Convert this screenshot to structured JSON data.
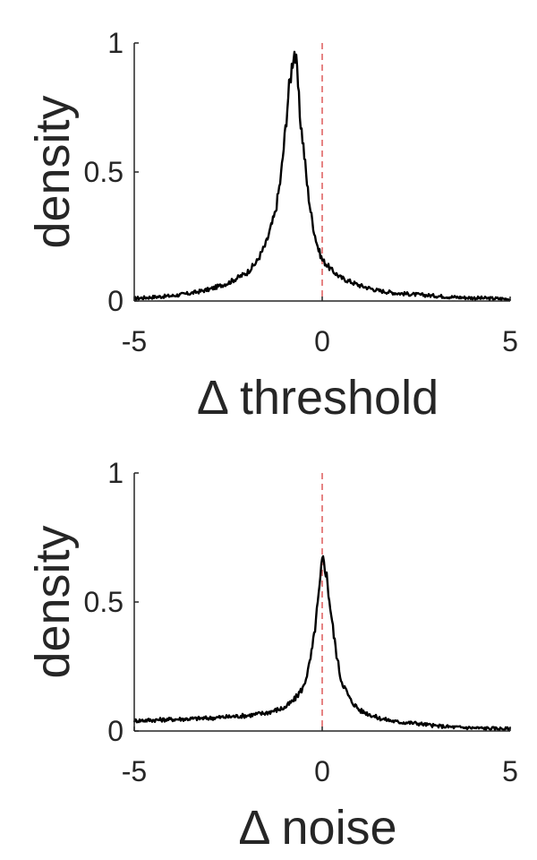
{
  "chart_data": [
    {
      "type": "line",
      "xlabel": "Δ threshold",
      "ylabel": "density",
      "xlim": [
        -5,
        5
      ],
      "ylim": [
        0,
        1
      ],
      "xticks": [
        "-5",
        "0",
        "5"
      ],
      "yticks": [
        "0",
        "0.5",
        "1"
      ],
      "grid": false,
      "reference_line": {
        "x": 0,
        "style": "dashed",
        "color": "#e06666"
      },
      "line_color": "#000000",
      "series": [
        {
          "x": [
            -5,
            -4.5,
            -4,
            -3.5,
            -3,
            -2.5,
            -2,
            -1.75,
            -1.5,
            -1.25,
            -1.1,
            -1,
            -0.9,
            -0.8,
            -0.75,
            -0.7,
            -0.65,
            -0.6,
            -0.5,
            -0.4,
            -0.3,
            -0.2,
            -0.1,
            0,
            0.25,
            0.5,
            1,
            1.5,
            2,
            2.5,
            3,
            3.5,
            4,
            4.5,
            5
          ],
          "y": [
            0.01,
            0.015,
            0.02,
            0.03,
            0.045,
            0.07,
            0.11,
            0.15,
            0.22,
            0.34,
            0.48,
            0.63,
            0.8,
            0.92,
            0.98,
            0.93,
            0.85,
            0.73,
            0.6,
            0.45,
            0.34,
            0.26,
            0.2,
            0.16,
            0.12,
            0.09,
            0.06,
            0.04,
            0.03,
            0.025,
            0.02,
            0.015,
            0.012,
            0.01,
            0.008
          ]
        }
      ]
    },
    {
      "type": "line",
      "xlabel": "Δ noise",
      "ylabel": "density",
      "xlim": [
        -5,
        5
      ],
      "ylim": [
        0,
        1
      ],
      "xticks": [
        "-5",
        "0",
        "5"
      ],
      "yticks": [
        "0",
        "0.5",
        "1"
      ],
      "grid": false,
      "reference_line": {
        "x": 0,
        "style": "dashed",
        "color": "#e06666"
      },
      "line_color": "#000000",
      "series": [
        {
          "x": [
            -5,
            -4,
            -3,
            -2,
            -1.5,
            -1,
            -0.75,
            -0.5,
            -0.35,
            -0.25,
            -0.15,
            -0.05,
            0,
            0.05,
            0.1,
            0.2,
            0.3,
            0.4,
            0.5,
            0.75,
            1,
            1.5,
            2,
            2.5,
            3,
            3.5,
            4,
            4.5,
            5
          ],
          "y": [
            0.04,
            0.045,
            0.05,
            0.06,
            0.07,
            0.09,
            0.12,
            0.17,
            0.25,
            0.33,
            0.45,
            0.58,
            0.66,
            0.66,
            0.62,
            0.5,
            0.38,
            0.28,
            0.2,
            0.12,
            0.08,
            0.05,
            0.035,
            0.03,
            0.02,
            0.015,
            0.012,
            0.01,
            0.008
          ]
        }
      ]
    }
  ]
}
